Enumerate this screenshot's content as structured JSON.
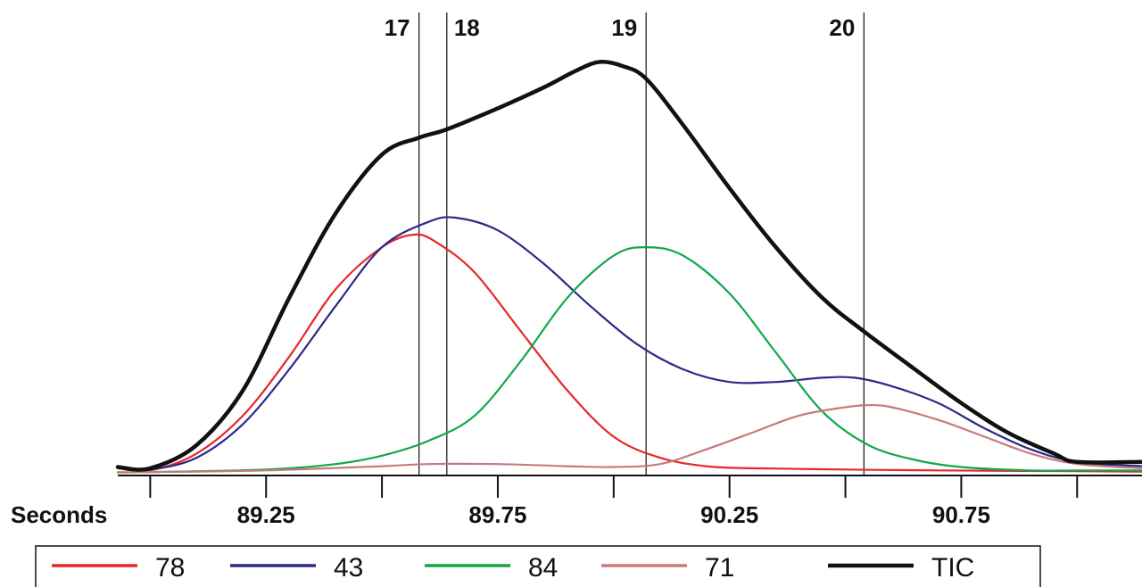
{
  "chart_data": {
    "type": "line",
    "xlabel": "Seconds",
    "ylabel": "",
    "title": "",
    "xlim": [
      88.93,
      91.14
    ],
    "ylim": [
      0,
      100
    ],
    "xticks": [
      89.0,
      89.25,
      89.5,
      89.75,
      90.0,
      90.25,
      90.5,
      90.75,
      91.0
    ],
    "xtick_labels": [
      {
        "x": 89.25,
        "label": "89.25"
      },
      {
        "x": 89.75,
        "label": "89.75"
      },
      {
        "x": 90.25,
        "label": "90.25"
      },
      {
        "x": 90.75,
        "label": "90.75"
      }
    ],
    "markers": [
      {
        "label": "17",
        "x": 89.58
      },
      {
        "label": "18",
        "x": 89.64
      },
      {
        "label": "19",
        "x": 90.07
      },
      {
        "label": "20",
        "x": 90.54
      }
    ],
    "legend_position": "bottom",
    "grid": false,
    "series": [
      {
        "name": "78",
        "color": "#e8262a",
        "x": [
          88.93,
          89.0,
          89.1,
          89.2,
          89.3,
          89.4,
          89.5,
          89.57,
          89.62,
          89.7,
          89.8,
          89.9,
          90.0,
          90.1,
          90.2,
          90.3,
          90.5,
          90.7,
          91.0,
          91.14
        ],
        "y": [
          1.5,
          1.0,
          5,
          14,
          28,
          44,
          54,
          57,
          55,
          48,
          34,
          20,
          9,
          4,
          2,
          1.5,
          1.2,
          1.0,
          0.8,
          0.7
        ]
      },
      {
        "name": "43",
        "color": "#2a2a8a",
        "x": [
          88.93,
          89.0,
          89.1,
          89.2,
          89.3,
          89.4,
          89.5,
          89.6,
          89.66,
          89.75,
          89.85,
          89.95,
          90.05,
          90.15,
          90.25,
          90.35,
          90.45,
          90.52,
          90.6,
          90.7,
          90.8,
          90.9,
          91.0,
          91.14
        ],
        "y": [
          1.5,
          1.2,
          4,
          12,
          25,
          40,
          54,
          60,
          61,
          58,
          50,
          40,
          31,
          25,
          22,
          22,
          23,
          23,
          21,
          17,
          11,
          6,
          3,
          2
        ]
      },
      {
        "name": "84",
        "color": "#10a84a",
        "x": [
          88.93,
          89.0,
          89.25,
          89.4,
          89.5,
          89.6,
          89.7,
          89.8,
          89.9,
          90.0,
          90.07,
          90.15,
          90.25,
          90.35,
          90.45,
          90.55,
          90.65,
          90.75,
          90.9,
          91.0,
          91.14
        ],
        "y": [
          0.5,
          0.6,
          1.2,
          2.5,
          4.5,
          8,
          14,
          27,
          42,
          52,
          54,
          52,
          43,
          29,
          15,
          7,
          3.5,
          1.8,
          1.0,
          1.0,
          1.0
        ]
      },
      {
        "name": "71",
        "color": "#c77b7a",
        "x": [
          88.93,
          89.0,
          89.25,
          89.5,
          89.6,
          89.75,
          89.9,
          90.0,
          90.1,
          90.2,
          90.3,
          90.4,
          90.5,
          90.55,
          90.6,
          90.7,
          90.8,
          90.9,
          91.0,
          91.14
        ],
        "y": [
          0.6,
          0.6,
          1.0,
          2.0,
          2.5,
          2.5,
          2.0,
          1.8,
          2.5,
          6,
          10,
          14,
          16,
          16.5,
          16,
          13,
          9,
          5,
          2.5,
          1.5
        ]
      },
      {
        "name": "TIC",
        "color": "#111111",
        "x": [
          88.93,
          89.0,
          89.1,
          89.2,
          89.3,
          89.4,
          89.5,
          89.58,
          89.64,
          89.75,
          89.85,
          89.92,
          89.97,
          90.02,
          90.07,
          90.15,
          90.25,
          90.35,
          90.45,
          90.54,
          90.65,
          90.75,
          90.85,
          90.95,
          91.0,
          91.14
        ],
        "y": [
          1.8,
          1.5,
          7,
          20,
          42,
          62,
          76,
          80,
          82,
          87,
          92,
          96,
          98,
          97,
          94,
          83,
          68,
          54,
          42,
          34,
          25,
          17,
          10,
          5,
          3,
          3
        ]
      }
    ]
  }
}
